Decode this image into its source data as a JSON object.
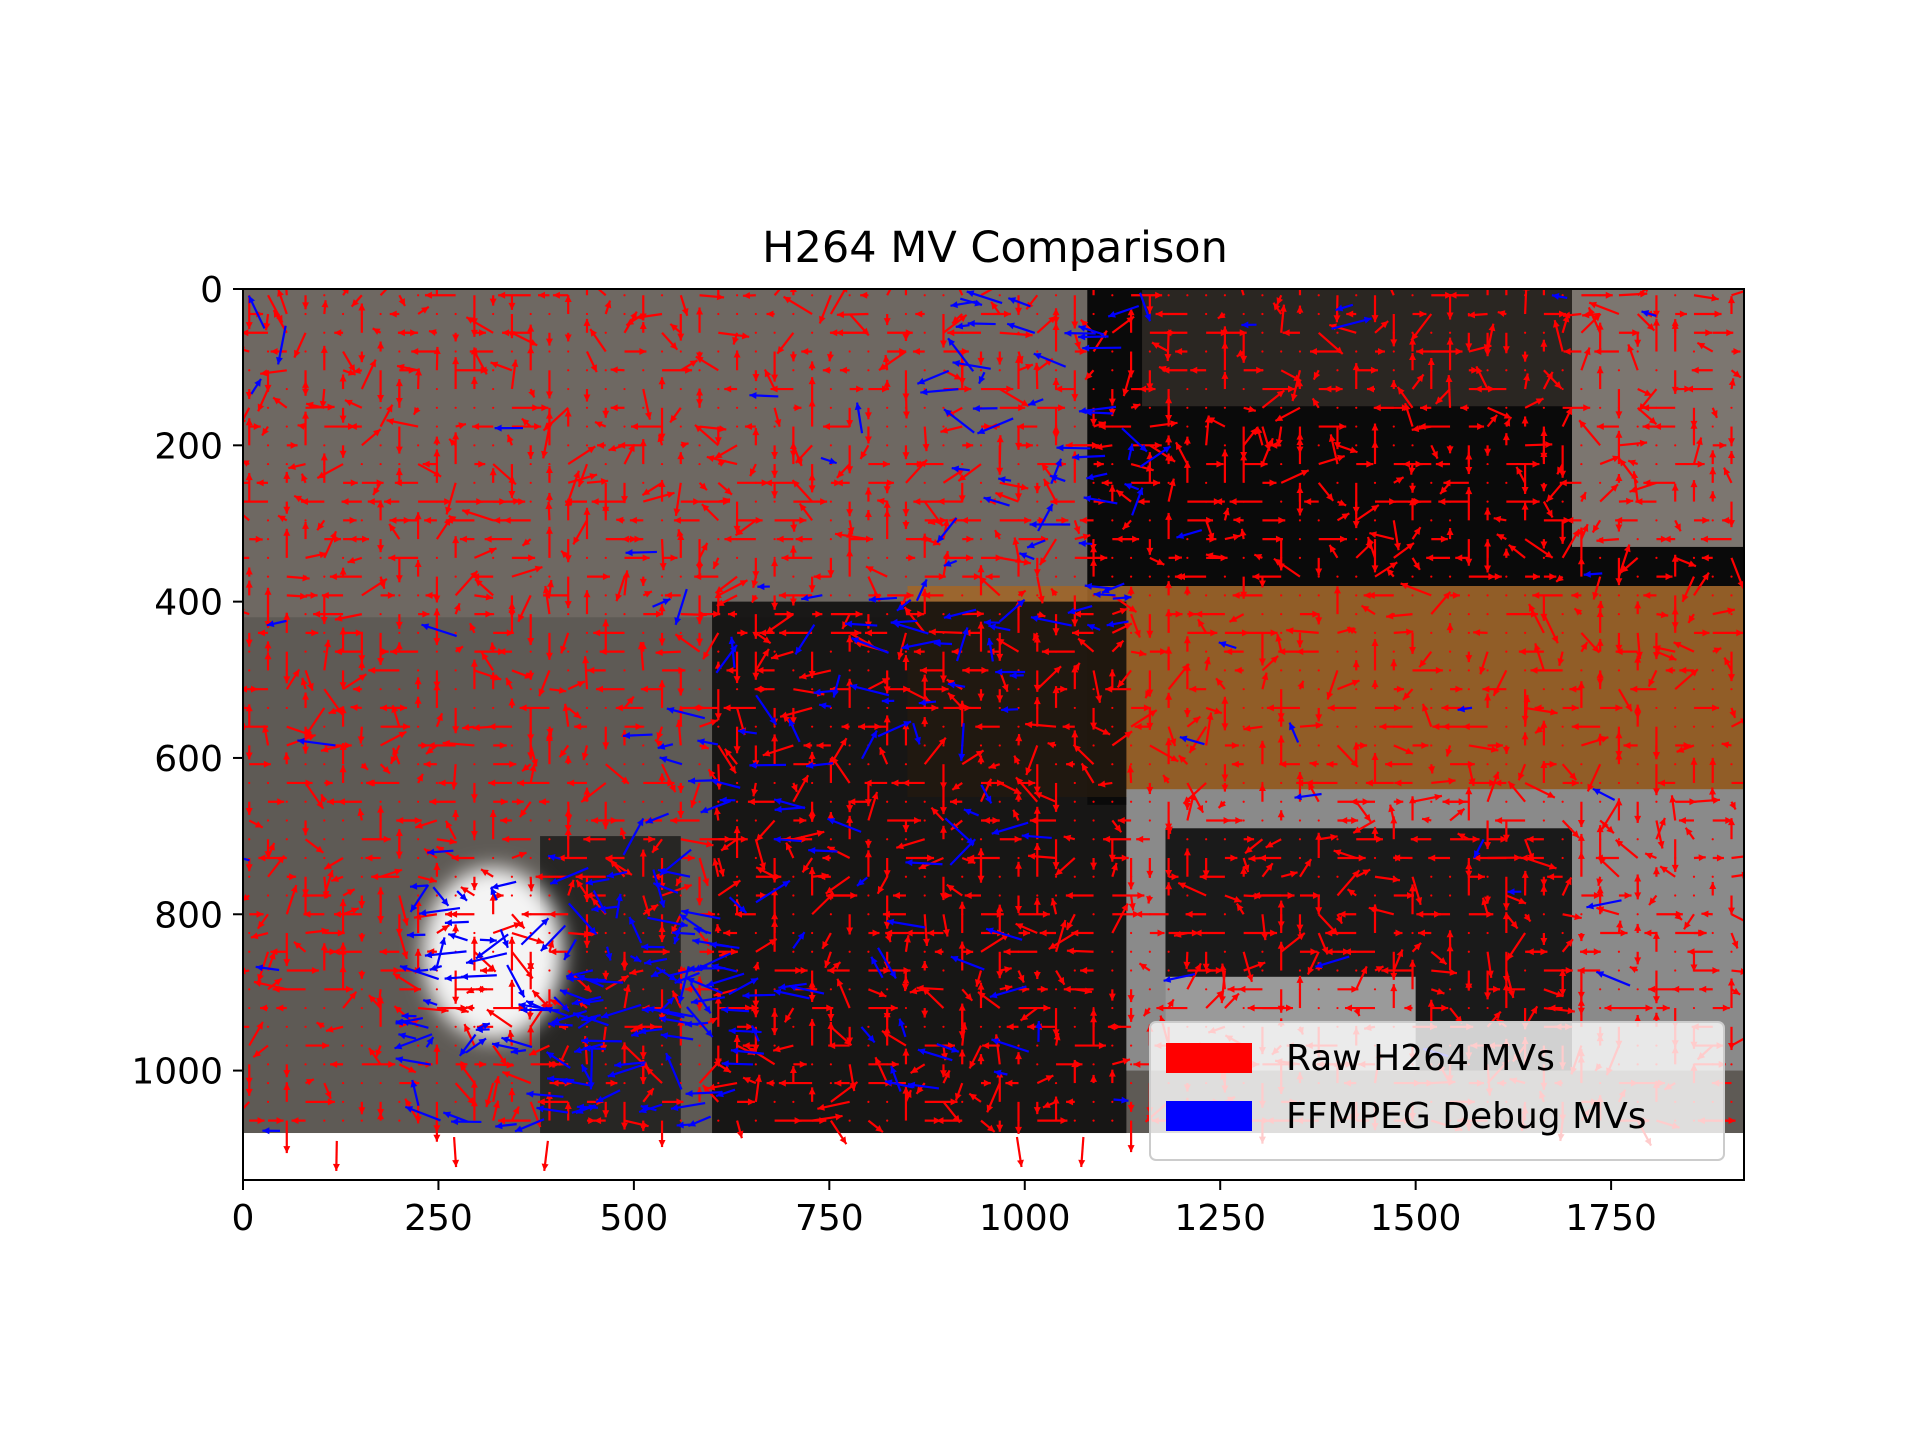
{
  "chart_data": {
    "type": "quiver",
    "title": "H264 MV Comparison",
    "xlabel": "",
    "ylabel": "",
    "xlim": [
      0,
      1920
    ],
    "ylim": [
      1140,
      0
    ],
    "y_inverted": true,
    "image_extent": {
      "width": 1920,
      "height": 1080
    },
    "x_ticks": [
      0,
      250,
      500,
      750,
      1000,
      1250,
      1500,
      1750
    ],
    "y_ticks": [
      0,
      200,
      400,
      600,
      800,
      1000
    ],
    "grid": false,
    "legend_position": "lower right",
    "series": [
      {
        "name": "Raw H264 MVs",
        "color": "#ff0000",
        "block_size": 16
      },
      {
        "name": "FFMPEG Debug MVs",
        "color": "#0000ff",
        "block_size": 16
      }
    ],
    "background_regions": [
      {
        "label": "left-wall",
        "color": "#5e5a55"
      },
      {
        "label": "dark-door",
        "color": "#0a0a0a"
      },
      {
        "label": "orange-table",
        "color": "#a0662a"
      },
      {
        "label": "gray-object",
        "color": "#8a8a8a"
      },
      {
        "label": "bright-spot",
        "color": "#f4f4f4"
      }
    ]
  }
}
